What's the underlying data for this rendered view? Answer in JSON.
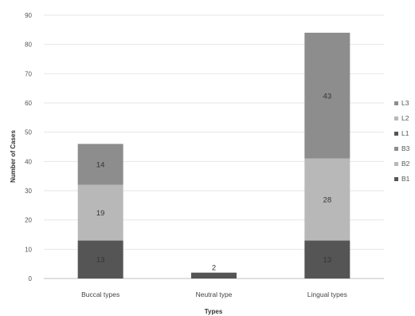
{
  "chart_data": {
    "type": "bar",
    "stacked": true,
    "xlabel": "Types",
    "ylabel": "Number of Cases",
    "ylim": [
      0,
      90
    ],
    "yticks": [
      0,
      10,
      20,
      30,
      40,
      50,
      60,
      70,
      80,
      90
    ],
    "grid": true,
    "legend_position": "right",
    "categories": [
      "Buccal types",
      "Neutral type",
      "Lingual types"
    ],
    "series": [
      {
        "name": "B1",
        "values": [
          13,
          0,
          0
        ],
        "color": "#555555",
        "labels": [
          "13",
          "",
          ""
        ]
      },
      {
        "name": "B2",
        "values": [
          19,
          0,
          0
        ],
        "color": "#b8b8b8",
        "labels": [
          "19",
          "",
          ""
        ]
      },
      {
        "name": "B3",
        "values": [
          14,
          0,
          0
        ],
        "color": "#8d8d8d",
        "labels": [
          "14",
          "",
          ""
        ]
      },
      {
        "name": "L1",
        "values": [
          0,
          2,
          13
        ],
        "color": "#555555",
        "labels": [
          "",
          "2",
          "13"
        ]
      },
      {
        "name": "L2",
        "values": [
          0,
          0,
          28
        ],
        "color": "#b8b8b8",
        "labels": [
          "",
          "",
          "28"
        ]
      },
      {
        "name": "L3",
        "values": [
          0,
          0,
          43
        ],
        "color": "#8d8d8d",
        "labels": [
          "",
          "",
          "43"
        ]
      }
    ],
    "legend_order": [
      "L3",
      "L2",
      "L1",
      "B3",
      "B2",
      "B1"
    ]
  }
}
